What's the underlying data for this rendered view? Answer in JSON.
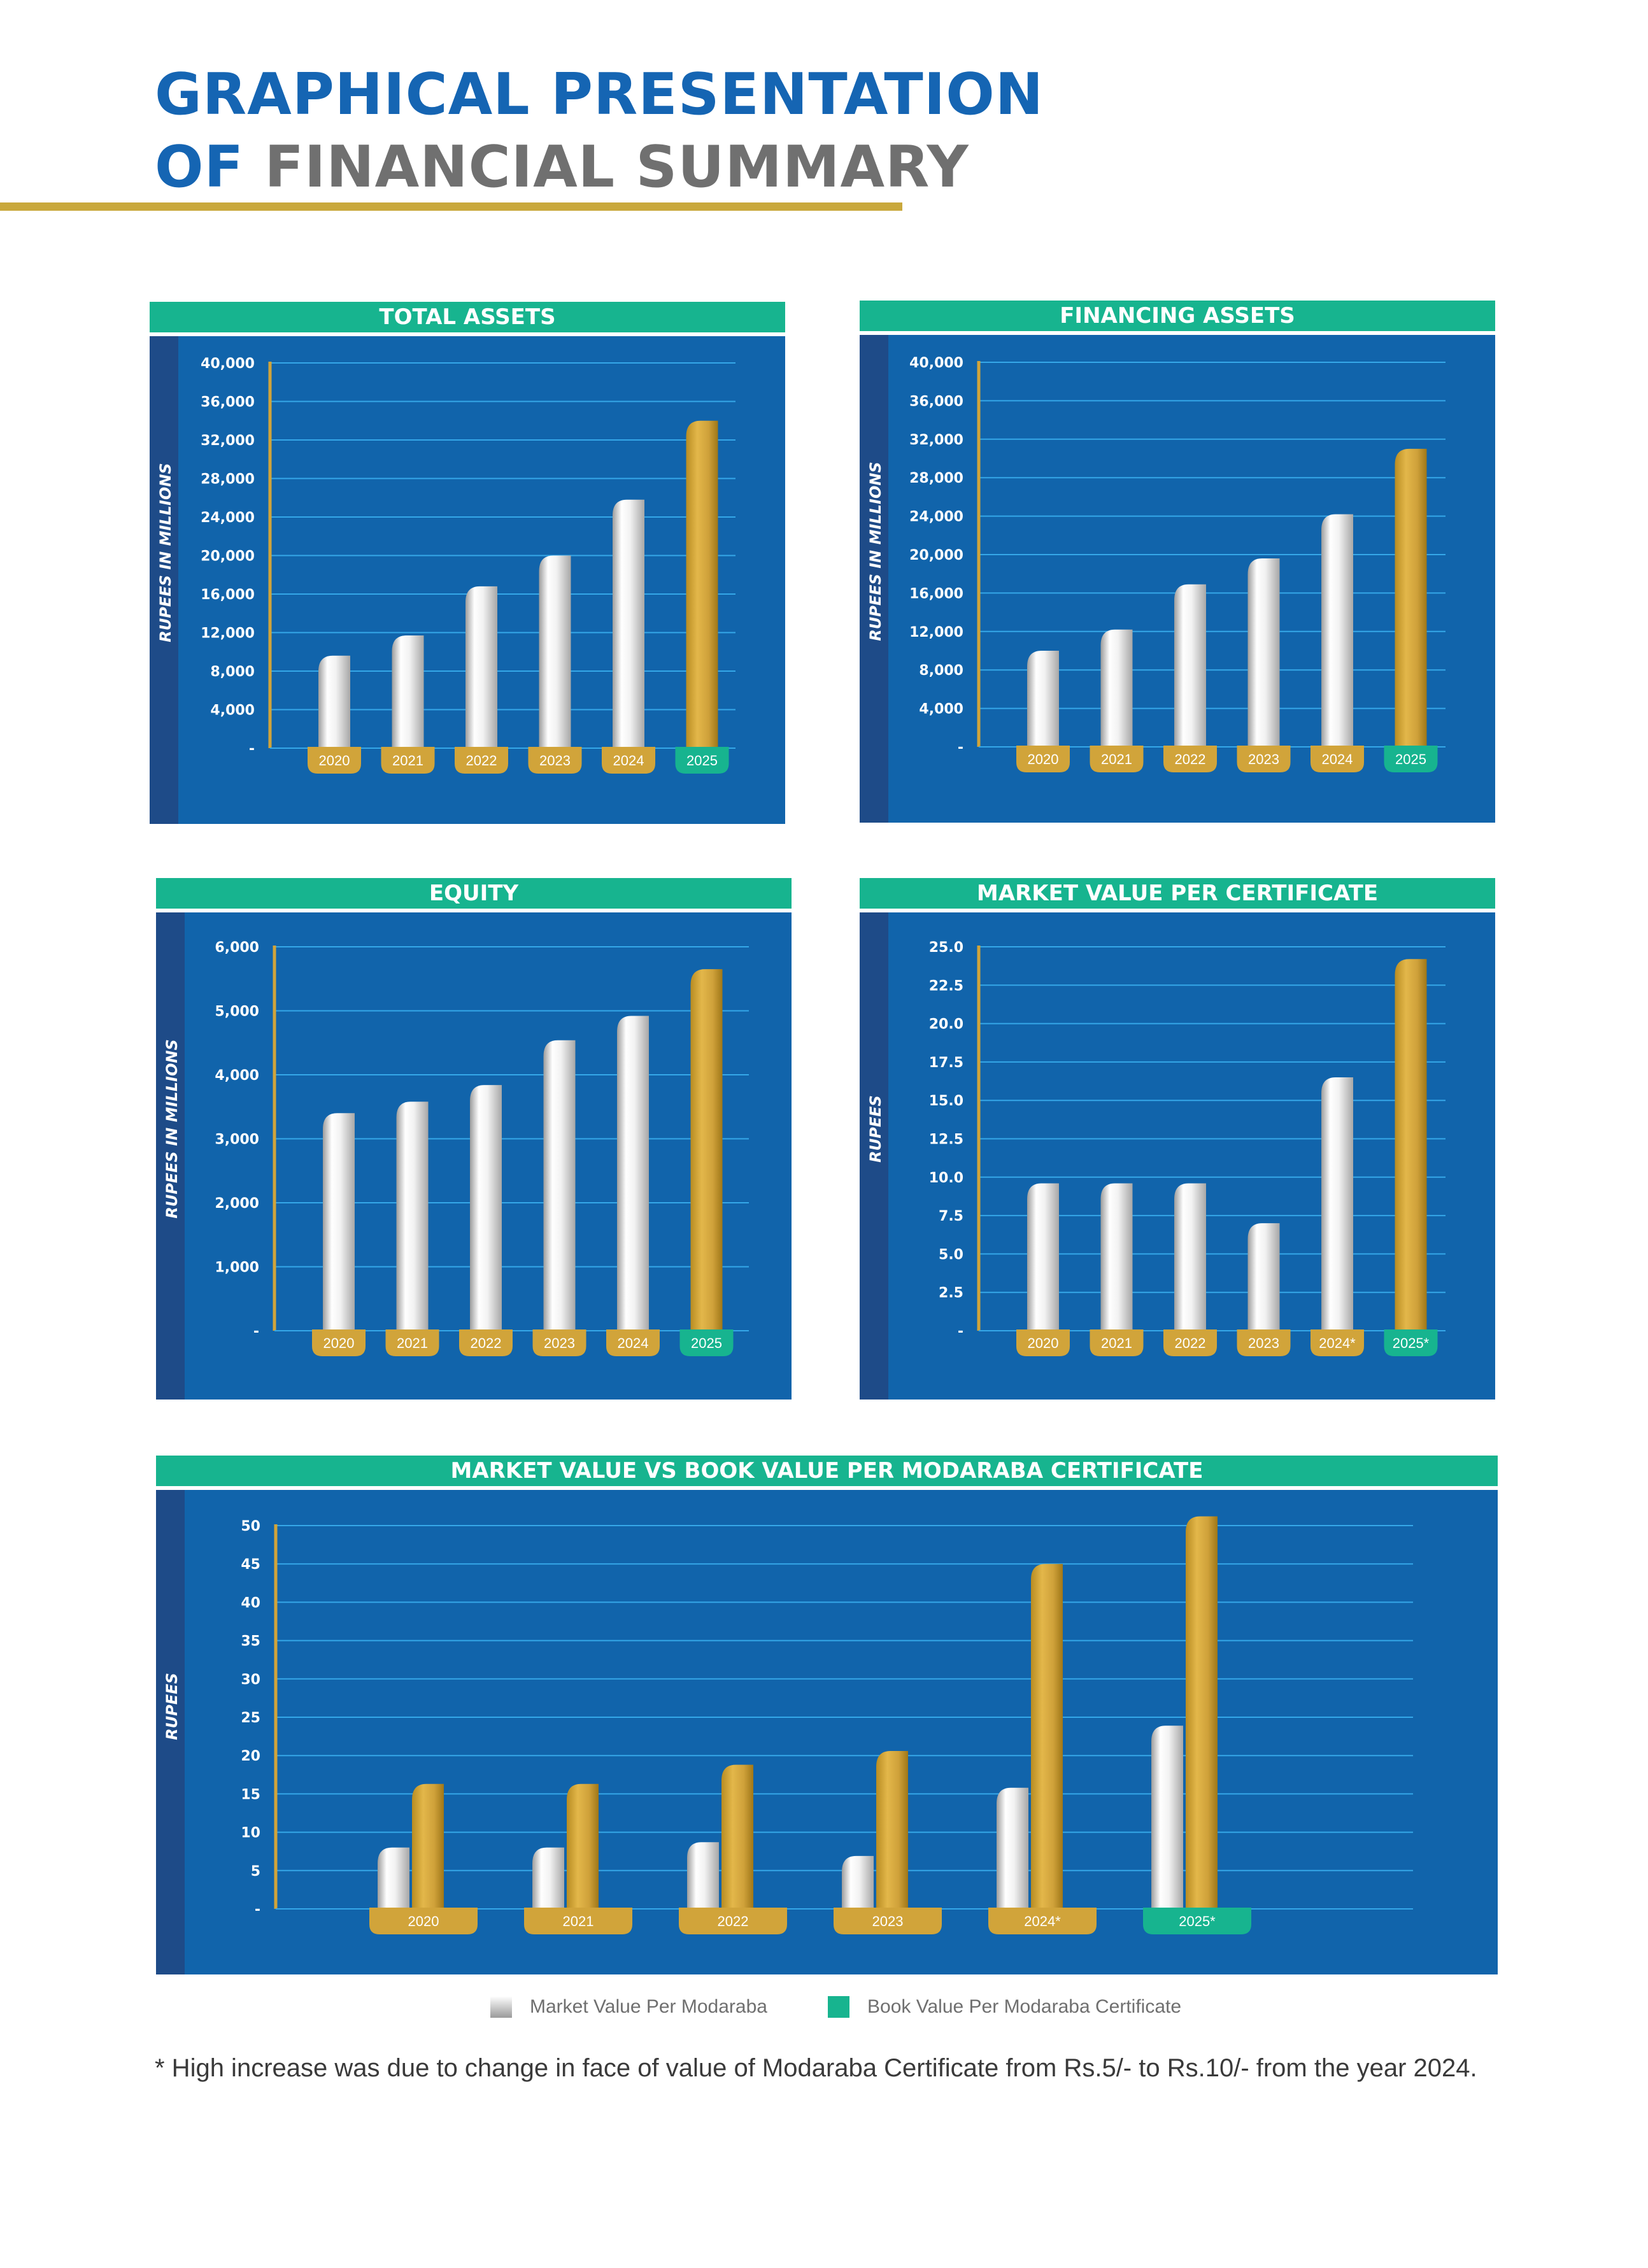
{
  "page_title": {
    "line1": "GRAPHICAL PRESENTATION",
    "line2_of": "OF",
    "line2_rest": "FINANCIAL SUMMARY"
  },
  "colors": {
    "primary_blue": "#1565b3",
    "panel_blue": "#1164ab",
    "panel_strip": "#1e4b88",
    "header_green": "#17b48f",
    "gold": "#d1a43a",
    "grid": "#35a7e8",
    "title_grey": "#707070"
  },
  "chart_data": [
    {
      "id": "total-assets",
      "type": "bar",
      "title": "TOTAL ASSETS",
      "ylabel": "RUPEES IN MILLIONS",
      "categories": [
        "2020",
        "2021",
        "2022",
        "2023",
        "2024",
        "2025"
      ],
      "values": [
        9600,
        11700,
        16800,
        20000,
        25800,
        34000
      ],
      "ylim": [
        0,
        40000
      ],
      "yticks": [
        "-",
        "4,000",
        "8,000",
        "12,000",
        "16,000",
        "20,000",
        "24,000",
        "28,000",
        "32,000",
        "36,000",
        "40,000"
      ],
      "highlight": "2025",
      "grid": true
    },
    {
      "id": "financing-assets",
      "type": "bar",
      "title": "FINANCING ASSETS",
      "ylabel": "RUPEES IN MILLIONS",
      "categories": [
        "2020",
        "2021",
        "2022",
        "2023",
        "2024",
        "2025"
      ],
      "values": [
        10000,
        12200,
        16900,
        19600,
        24200,
        31000
      ],
      "ylim": [
        0,
        40000
      ],
      "yticks": [
        "-",
        "4,000",
        "8,000",
        "12,000",
        "16,000",
        "20,000",
        "24,000",
        "28,000",
        "32,000",
        "36,000",
        "40,000"
      ],
      "highlight": "2025",
      "grid": true
    },
    {
      "id": "equity",
      "type": "bar",
      "title": "EQUITY",
      "ylabel": "RUPEES IN MILLIONS",
      "categories": [
        "2020",
        "2021",
        "2022",
        "2023",
        "2024",
        "2025"
      ],
      "values": [
        3400,
        3580,
        3840,
        4540,
        4920,
        5650
      ],
      "ylim": [
        0,
        6000
      ],
      "yticks": [
        "-",
        "1,000",
        "2,000",
        "3,000",
        "4,000",
        "5,000",
        "6,000"
      ],
      "highlight": "2025",
      "grid": true
    },
    {
      "id": "market-value",
      "type": "bar",
      "title": "MARKET VALUE PER CERTIFICATE",
      "ylabel": "RUPEES",
      "categories": [
        "2020",
        "2021",
        "2022",
        "2023",
        "2024*",
        "2025*"
      ],
      "values": [
        9.6,
        9.6,
        9.6,
        7.0,
        16.5,
        24.2
      ],
      "ylim": [
        0,
        25
      ],
      "yticks": [
        "-",
        "2.5",
        "5.0",
        "7.5",
        "10.0",
        "12.5",
        "15.0",
        "17.5",
        "20.0",
        "22.5",
        "25.0"
      ],
      "highlight": "2025*",
      "grid": true
    },
    {
      "id": "market-vs-book",
      "type": "bar",
      "title": "MARKET VALUE VS BOOK VALUE PER MODARABA CERTIFICATE",
      "ylabel": "RUPEES",
      "categories": [
        "2020",
        "2021",
        "2022",
        "2023",
        "2024*",
        "2025*"
      ],
      "series": [
        {
          "name": "Market Value Per Modaraba",
          "values": [
            8.0,
            8.0,
            8.7,
            6.9,
            15.8,
            23.9
          ]
        },
        {
          "name": "Book Value Per Modaraba Certificate",
          "values": [
            16.3,
            16.3,
            18.8,
            20.6,
            45.0,
            51.2
          ]
        }
      ],
      "ylim": [
        0,
        50
      ],
      "yticks": [
        "-",
        "5",
        "10",
        "15",
        "20",
        "25",
        "30",
        "35",
        "40",
        "45",
        "50"
      ],
      "highlight": "2025*",
      "grid": true
    }
  ],
  "legend": {
    "market": "Market Value Per Modaraba",
    "book": "Book Value Per Modaraba Certificate"
  },
  "footnote": "* High increase was due to change in face of value of Modaraba Certificate from Rs.5/- to Rs.10/- from the year 2024."
}
